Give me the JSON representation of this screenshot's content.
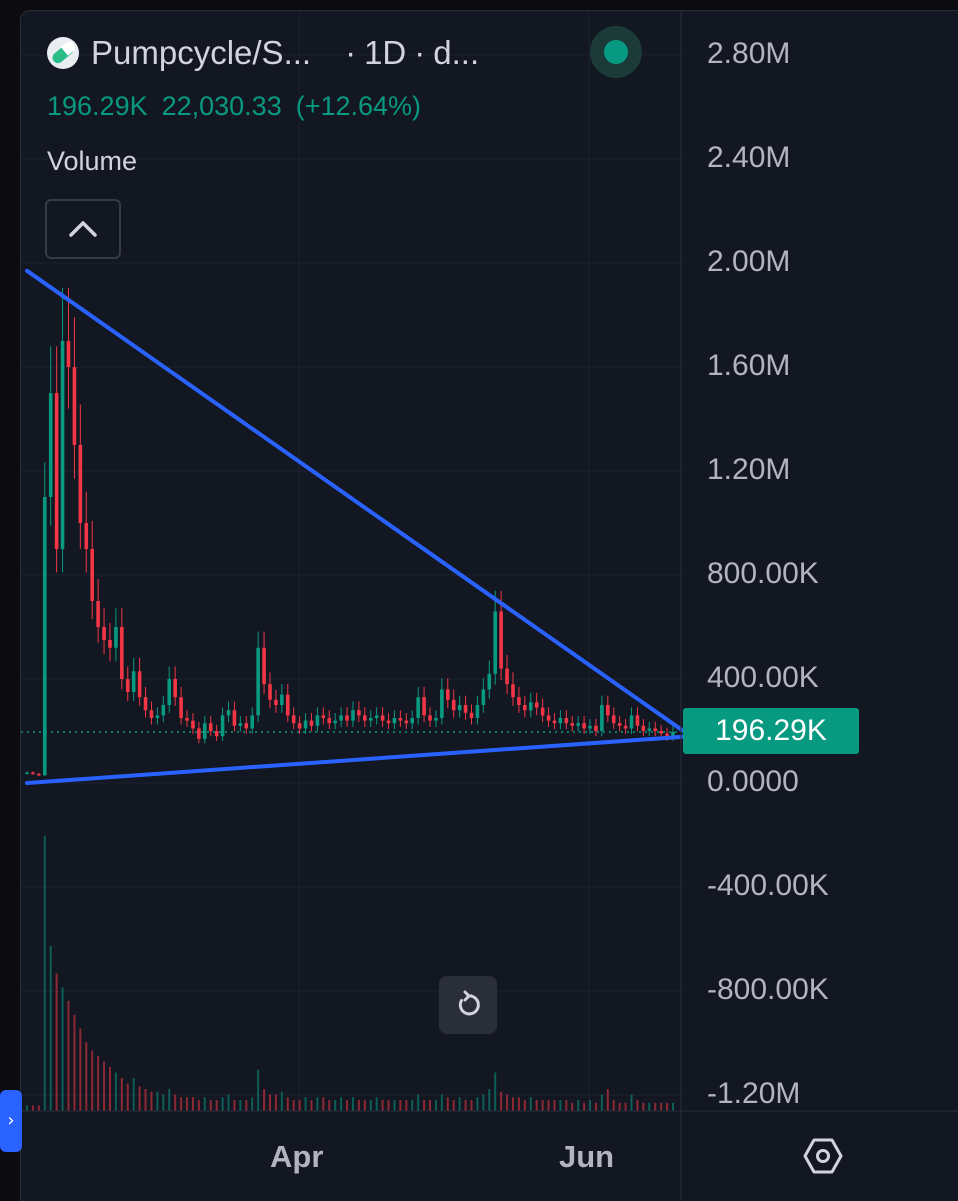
{
  "header": {
    "symbol": "Pumpcycle/S...",
    "sep1": "·",
    "interval": "1D",
    "sep2": "·",
    "exchange": "d..."
  },
  "ohlc": {
    "volume": "196.29K",
    "close": "22,030.33",
    "change": "(+12.64%)"
  },
  "indicator_label": "Volume",
  "price_badge": "196.29K",
  "icons": {
    "logo": "pill-logo-icon",
    "collapse": "chevron-up-icon",
    "reset": "reset-icon",
    "settings": "settings-icon",
    "side_tab": "chevron-right-icon"
  },
  "colors": {
    "background": "#131722",
    "up": "#089981",
    "down": "#f23645",
    "trendline": "#2962ff",
    "text": "#b2b5be"
  },
  "side_tab_glyph": "›",
  "chart_data": {
    "type": "line",
    "y_axis_labels": [
      "2.80M",
      "2.40M",
      "2.00M",
      "1.60M",
      "1.20M",
      "800.00K",
      "400.00K",
      "0.0000",
      "-400.00K",
      "-800.00K",
      "-1.20M"
    ],
    "x_axis_labels": [
      "Apr",
      "Jun"
    ],
    "ylim": [
      -1200000,
      2800000
    ],
    "last_value": 196290,
    "trendlines": [
      {
        "name": "upper",
        "from": [
          0,
          1970000
        ],
        "to": [
          112,
          180000
        ]
      },
      {
        "name": "lower",
        "from": [
          0,
          0
        ],
        "to": [
          112,
          180000
        ]
      }
    ],
    "series": [
      {
        "name": "close",
        "values": [
          40000,
          35000,
          30000,
          1100000,
          1500000,
          900000,
          1700000,
          1600000,
          1300000,
          1000000,
          900000,
          700000,
          600000,
          550000,
          520000,
          600000,
          400000,
          350000,
          430000,
          330000,
          280000,
          250000,
          260000,
          300000,
          400000,
          330000,
          250000,
          240000,
          210000,
          170000,
          230000,
          200000,
          180000,
          260000,
          280000,
          220000,
          230000,
          210000,
          260000,
          520000,
          380000,
          320000,
          300000,
          340000,
          260000,
          230000,
          210000,
          240000,
          220000,
          260000,
          250000,
          230000,
          240000,
          260000,
          240000,
          280000,
          260000,
          240000,
          250000,
          260000,
          240000,
          230000,
          250000,
          240000,
          230000,
          250000,
          330000,
          260000,
          240000,
          250000,
          360000,
          320000,
          280000,
          300000,
          270000,
          250000,
          300000,
          360000,
          420000,
          660000,
          440000,
          380000,
          330000,
          300000,
          280000,
          310000,
          290000,
          260000,
          240000,
          230000,
          250000,
          230000,
          220000,
          230000,
          210000,
          220000,
          200000,
          300000,
          260000,
          230000,
          220000,
          210000,
          260000,
          220000,
          200000,
          210000,
          200000,
          190000,
          180000,
          196290
        ]
      },
      {
        "name": "volume",
        "values": [
          2,
          2,
          2,
          100,
          60,
          50,
          45,
          40,
          35,
          30,
          25,
          22,
          20,
          18,
          16,
          14,
          12,
          10,
          12,
          9,
          8,
          7,
          7,
          6,
          8,
          6,
          5,
          5,
          5,
          4,
          5,
          4,
          4,
          5,
          6,
          4,
          4,
          4,
          5,
          15,
          8,
          6,
          6,
          7,
          5,
          4,
          4,
          5,
          4,
          5,
          5,
          4,
          4,
          5,
          4,
          5,
          4,
          4,
          4,
          5,
          4,
          4,
          4,
          4,
          4,
          4,
          6,
          4,
          4,
          4,
          6,
          5,
          4,
          5,
          4,
          4,
          5,
          6,
          8,
          14,
          7,
          6,
          5,
          5,
          4,
          5,
          4,
          4,
          4,
          4,
          4,
          4,
          3,
          4,
          3,
          4,
          3,
          6,
          8,
          4,
          3,
          3,
          6,
          4,
          3,
          3,
          3,
          3,
          3,
          3
        ]
      }
    ]
  }
}
